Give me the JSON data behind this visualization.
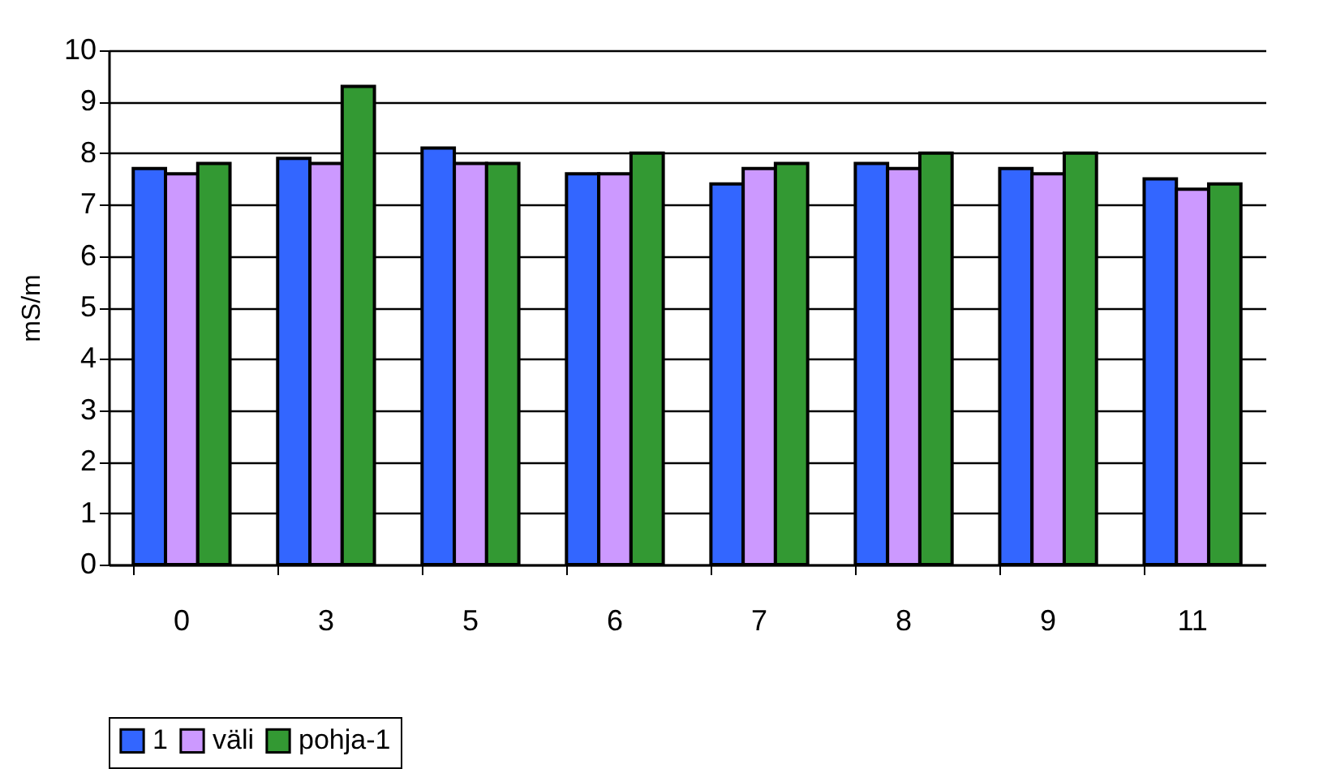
{
  "chart_data": {
    "type": "bar",
    "ylabel": "mS/m",
    "categories": [
      "0",
      "3",
      "5",
      "6",
      "7",
      "8",
      "9",
      "11"
    ],
    "series": [
      {
        "name": "1",
        "color": "#3366ff",
        "values": [
          7.7,
          7.9,
          8.1,
          7.6,
          7.4,
          7.8,
          7.7,
          7.5
        ]
      },
      {
        "name": "väli",
        "color": "#cc99ff",
        "values": [
          7.6,
          7.8,
          7.8,
          7.6,
          7.7,
          7.7,
          7.6,
          7.3
        ]
      },
      {
        "name": "pohja-1",
        "color": "#339933",
        "values": [
          7.8,
          9.3,
          7.8,
          8.0,
          7.8,
          8.0,
          8.0,
          7.4
        ]
      }
    ],
    "ylim": [
      0,
      10
    ],
    "yticks": [
      0,
      1,
      2,
      3,
      4,
      5,
      6,
      7,
      8,
      9,
      10
    ],
    "grid": "y",
    "legend": "bottom"
  }
}
